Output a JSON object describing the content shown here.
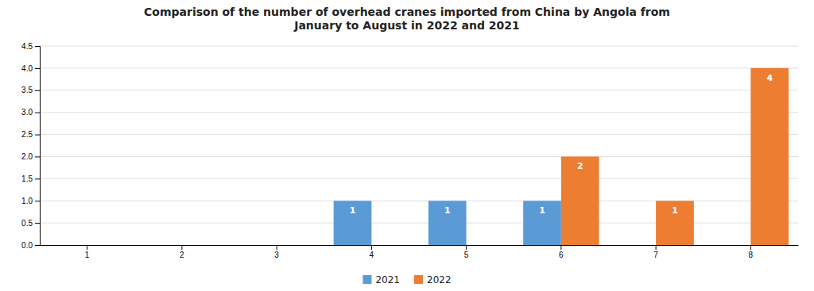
{
  "chart_data": {
    "type": "bar",
    "title": "Comparison of the number of overhead cranes imported from China by Angola from\nJanuary to August in 2022 and 2021",
    "categories": [
      "1",
      "2",
      "3",
      "4",
      "5",
      "6",
      "7",
      "8"
    ],
    "series": [
      {
        "name": "2021",
        "color": "#5B9BD5",
        "values": [
          0,
          0,
          0,
          1,
          1,
          1,
          0,
          0
        ]
      },
      {
        "name": "2022",
        "color": "#ED7D31",
        "values": [
          0,
          0,
          0,
          0,
          0,
          2,
          1,
          4
        ]
      }
    ],
    "ylim": [
      0,
      4.5
    ],
    "yticks": [
      {
        "value": 0,
        "label": "0.0"
      },
      0.5,
      {
        "value": 1,
        "label": "1.0"
      },
      1.5,
      {
        "value": 2,
        "label": "2.0"
      },
      2.5,
      {
        "value": 3,
        "label": "3.0"
      },
      3.5,
      {
        "value": 4,
        "label": "4.0"
      },
      4.5
    ],
    "grid": true,
    "legend": "bottom",
    "data_labels": true
  }
}
